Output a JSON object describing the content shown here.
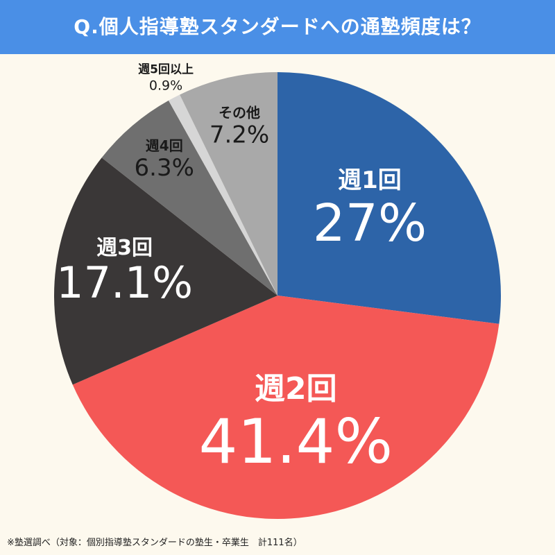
{
  "title": "Q.個人指導塾スタンダードへの通塾頻度は？",
  "footnote": "※塾選調べ（対象：個別指導塾スタンダードの塾生・卒業生　計111名）",
  "colors": {
    "title_bg": "#4a8fe6",
    "background": "#fdf9ee"
  },
  "chart_data": {
    "type": "pie",
    "title": "Q.個人指導塾スタンダードへの通塾頻度は？",
    "start": "12 o'clock, clockwise",
    "slices": [
      {
        "label": "週1回",
        "value": 27,
        "value_label": "27%",
        "color": "#2d64a8",
        "text_color": "#ffffff"
      },
      {
        "label": "週2回",
        "value": 41.4,
        "value_label": "41.4%",
        "color": "#f45856",
        "text_color": "#ffffff"
      },
      {
        "label": "週3回",
        "value": 17.1,
        "value_label": "17.1%",
        "color": "#3a3737",
        "text_color": "#ffffff"
      },
      {
        "label": "週4回",
        "value": 6.3,
        "value_label": "6.3%",
        "color": "#6f6f6f",
        "text_color": "#1a1a1a"
      },
      {
        "label": "週5回以上",
        "value": 0.9,
        "value_label": "0.9%",
        "color": "#d6d6d6",
        "text_color": "#1a1a1a"
      },
      {
        "label": "その他",
        "value": 7.2,
        "value_label": "7.2%",
        "color": "#a9a9a9",
        "text_color": "#1a1a1a"
      }
    ]
  }
}
